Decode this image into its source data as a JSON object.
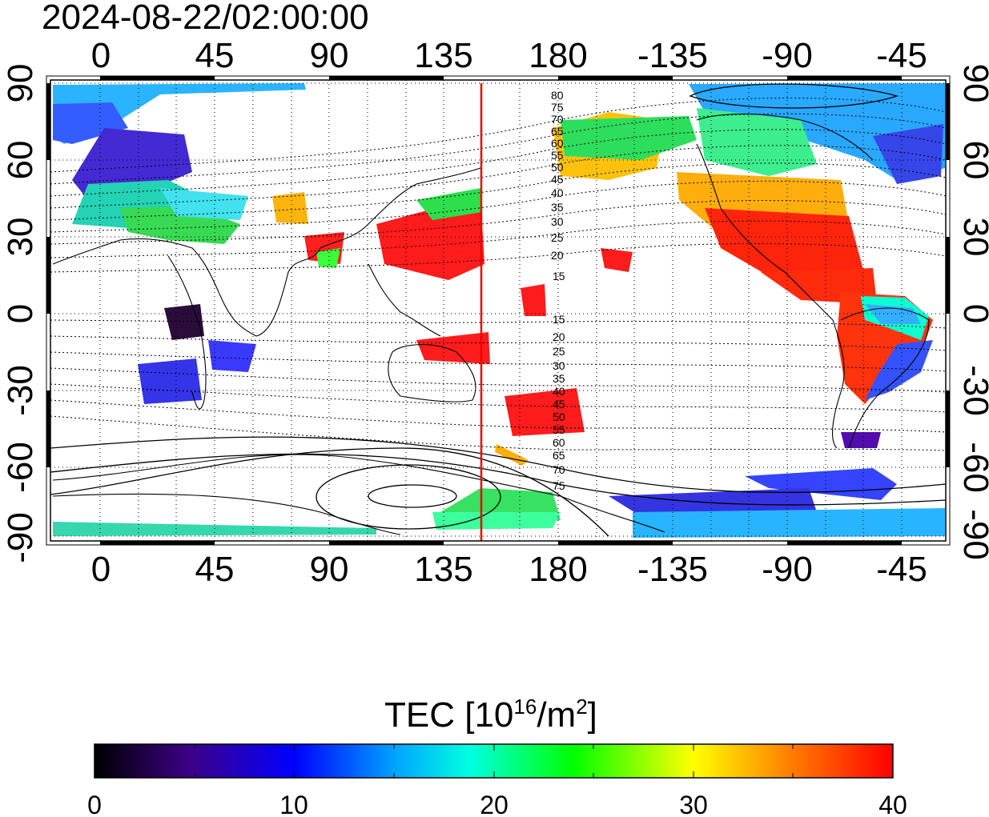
{
  "map": {
    "timestamp": "2024-08-22/02:00:00",
    "lon_ticks": [
      "0",
      "45",
      "90",
      "135",
      "180",
      "-135",
      "-90",
      "-45"
    ],
    "lat_ticks": [
      "90",
      "60",
      "30",
      "0",
      "-30",
      "-60",
      "-90"
    ],
    "contour_labels_north": [
      "80",
      "75",
      "70",
      "65",
      "60",
      "55",
      "50",
      "45",
      "40",
      "35",
      "30",
      "25",
      "20",
      "15"
    ],
    "contour_labels_south": [
      "15",
      "20",
      "25",
      "30",
      "35",
      "40",
      "45",
      "50",
      "55",
      "60",
      "65",
      "70",
      "75"
    ],
    "marker_line_color": "#ee0000",
    "marker_longitude": 150
  },
  "colorbar": {
    "title_prefix": "TEC  [10",
    "title_exp1": "16",
    "title_mid": "/m",
    "title_exp2": "2",
    "title_suffix": "]",
    "ticks": [
      "0",
      "10",
      "20",
      "30",
      "40"
    ],
    "range": [
      0,
      40
    ]
  }
}
